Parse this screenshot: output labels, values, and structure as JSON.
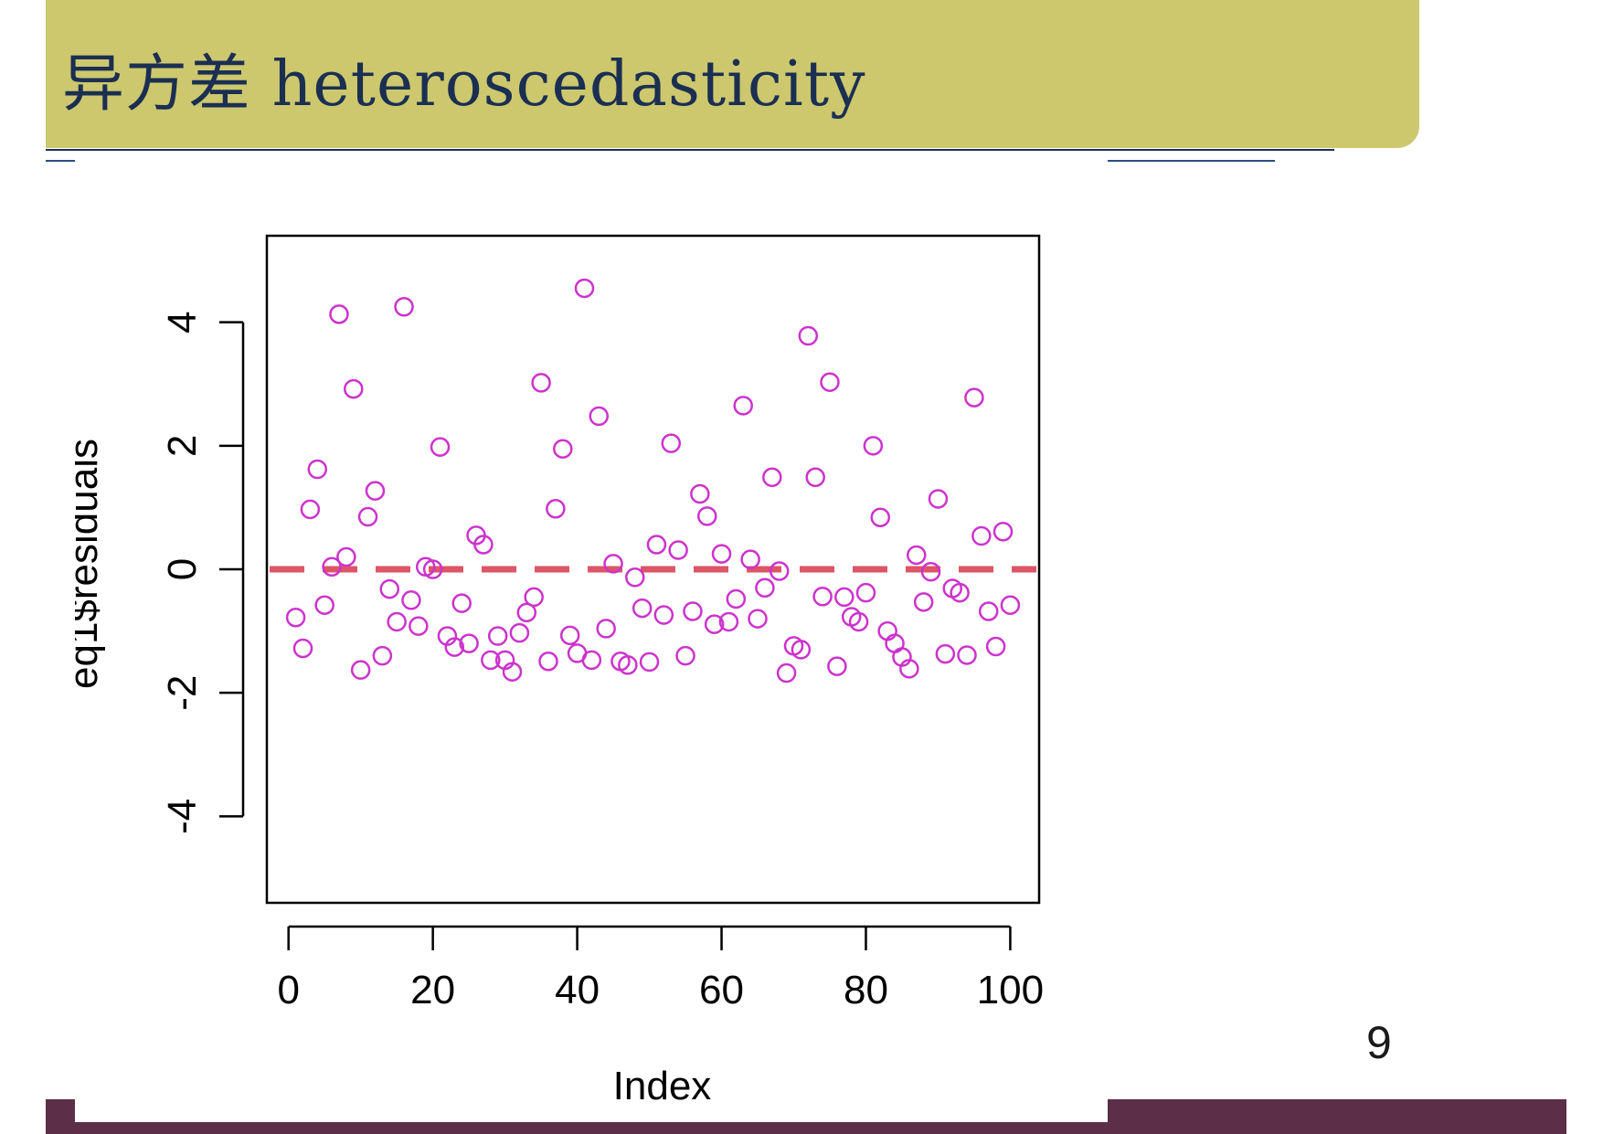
{
  "slide": {
    "title": "异方差 heteroscedasticity",
    "page_number": "9"
  },
  "colors": {
    "title_bar": "#cdc86e",
    "title_text": "#1b2f52",
    "footer_bar": "#5c2e48",
    "points": "#cc33cc",
    "zero_line": "#dd5566"
  },
  "chart_data": {
    "type": "scatter",
    "title": "",
    "xlabel": "Index",
    "ylabel": "eq1$residuals",
    "xlim": [
      -3,
      104
    ],
    "ylim": [
      -5.4,
      5.4
    ],
    "xticks": [
      0,
      20,
      40,
      60,
      80,
      100
    ],
    "yticks": [
      -4,
      -2,
      0,
      2,
      4
    ],
    "x_tick_labels": [
      "0",
      "20",
      "40",
      "60",
      "80",
      "100"
    ],
    "y_tick_labels": [
      "-4",
      "-2",
      "0",
      "2",
      "4"
    ],
    "grid": false,
    "legend": "none",
    "reference_line": {
      "y": 0,
      "style": "dashed"
    },
    "x": [
      1,
      2,
      3,
      4,
      5,
      6,
      7,
      8,
      9,
      10,
      11,
      12,
      13,
      14,
      15,
      16,
      17,
      18,
      19,
      20,
      21,
      22,
      23,
      24,
      25,
      26,
      27,
      28,
      29,
      30,
      31,
      32,
      33,
      34,
      35,
      36,
      37,
      38,
      39,
      40,
      41,
      42,
      43,
      44,
      45,
      46,
      47,
      48,
      49,
      50,
      51,
      52,
      53,
      54,
      55,
      56,
      57,
      58,
      59,
      60,
      61,
      62,
      63,
      64,
      65,
      66,
      67,
      68,
      69,
      70,
      71,
      72,
      73,
      74,
      75,
      76,
      77,
      78,
      79,
      80,
      81,
      82,
      83,
      84,
      85,
      86,
      87,
      88,
      89,
      90,
      91,
      92,
      93,
      94,
      95,
      96,
      97,
      98,
      99,
      100
    ],
    "y": [
      -0.78,
      -1.28,
      0.97,
      1.62,
      -0.58,
      0.04,
      4.13,
      0.2,
      2.92,
      -1.63,
      0.85,
      1.27,
      -1.4,
      -0.32,
      -0.85,
      4.25,
      -0.5,
      -0.92,
      0.04,
      0.0,
      1.98,
      -1.08,
      -1.26,
      -0.55,
      -1.2,
      0.55,
      0.4,
      -1.47,
      -1.08,
      -1.47,
      -1.66,
      -1.03,
      -0.7,
      -0.45,
      3.02,
      -1.49,
      0.98,
      1.95,
      -1.07,
      -1.36,
      4.55,
      -1.47,
      2.48,
      -0.96,
      0.09,
      -1.49,
      -1.55,
      -0.13,
      -0.63,
      -1.5,
      0.4,
      -0.74,
      2.04,
      0.31,
      -1.4,
      -0.68,
      1.22,
      0.86,
      -0.89,
      0.25,
      -0.85,
      -0.48,
      2.65,
      0.16,
      -0.8,
      -0.3,
      1.49,
      -0.03,
      -1.68,
      -1.24,
      -1.3,
      3.78,
      1.49,
      -0.44,
      3.03,
      -1.57,
      -0.45,
      -0.77,
      -0.85,
      -0.38,
      2.0,
      0.84,
      -1.0,
      -1.2,
      -1.42,
      -1.61,
      0.23,
      -0.53,
      -0.04,
      1.14,
      -1.37,
      -0.31,
      -0.38,
      -1.39,
      2.78,
      0.54,
      -0.68,
      -1.25,
      0.61,
      -0.58
    ]
  }
}
